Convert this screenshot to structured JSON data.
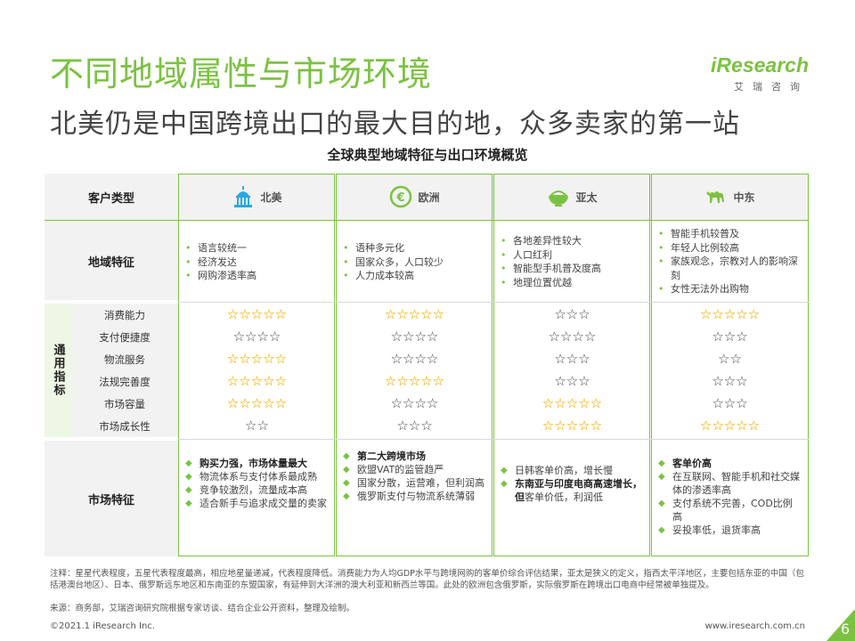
{
  "title": "不同地域属性与市场环境",
  "subtitle": "北美仍是中国跨境出口的最大目的地，众多卖家的第一站",
  "logo": {
    "word": "iResearch",
    "cn": "艾瑞咨询"
  },
  "table_title": "全球典型地域特征与出口环境概览",
  "colors": {
    "accent": "#7cc242",
    "star_gold": "#f2b51c",
    "star_hollow": "#444444"
  },
  "table": {
    "header_label": "客户类型",
    "regions": [
      {
        "name": "北美",
        "icon": "capitol-building-icon"
      },
      {
        "name": "欧洲",
        "icon": "euro-coin-icon"
      },
      {
        "name": "亚太",
        "icon": "rice-bowl-icon"
      },
      {
        "name": "中东",
        "icon": "camel-icon"
      }
    ],
    "region_features_label": "地域特征",
    "region_features": [
      [
        "语言较统一",
        "经济发达",
        "网购渗透率高"
      ],
      [
        "语种多元化",
        "国家众多，人口较少",
        "人力成本较高"
      ],
      [
        "各地差异性较大",
        "人口红利",
        "智能型手机普及度高",
        "地理位置优越"
      ],
      [
        "智能手机较普及",
        "年轻人比例较高",
        "家族观念，宗教对人的影响深刻",
        "女性无法外出购物"
      ]
    ],
    "general_label": "通用指标",
    "metrics": [
      {
        "label": "消费能力",
        "ratings": [
          {
            "count": 5,
            "gold": true
          },
          {
            "count": 5,
            "gold": true
          },
          {
            "count": 3,
            "gold": false
          },
          {
            "count": 5,
            "gold": true
          }
        ]
      },
      {
        "label": "支付便捷度",
        "ratings": [
          {
            "count": 4,
            "gold": false
          },
          {
            "count": 4,
            "gold": false
          },
          {
            "count": 4,
            "gold": false
          },
          {
            "count": 3,
            "gold": false
          }
        ]
      },
      {
        "label": "物流服务",
        "ratings": [
          {
            "count": 5,
            "gold": true
          },
          {
            "count": 4,
            "gold": false
          },
          {
            "count": 3,
            "gold": false
          },
          {
            "count": 2,
            "gold": false
          }
        ]
      },
      {
        "label": "法规完善度",
        "ratings": [
          {
            "count": 5,
            "gold": true
          },
          {
            "count": 5,
            "gold": true
          },
          {
            "count": 3,
            "gold": false
          },
          {
            "count": 3,
            "gold": false
          }
        ]
      },
      {
        "label": "市场容量",
        "ratings": [
          {
            "count": 5,
            "gold": true
          },
          {
            "count": 4,
            "gold": false
          },
          {
            "count": 5,
            "gold": true
          },
          {
            "count": 3,
            "gold": false
          }
        ]
      },
      {
        "label": "市场成长性",
        "ratings": [
          {
            "count": 2,
            "gold": false
          },
          {
            "count": 3,
            "gold": false
          },
          {
            "count": 5,
            "gold": true
          },
          {
            "count": 5,
            "gold": true
          }
        ]
      }
    ],
    "market_features_label": "市场特征",
    "market_features": [
      [
        {
          "bold": "购买力强，市场体量最大",
          "text": ""
        },
        {
          "bold": "",
          "text": "物流体系与支付体系最成熟"
        },
        {
          "bold": "",
          "text": "竞争较激烈，流量成本高"
        },
        {
          "bold": "",
          "text": "适合新手与追求成交量的卖家"
        }
      ],
      [
        {
          "bold": "第二大跨境市场",
          "text": ""
        },
        {
          "bold": "",
          "text": "欧盟VAT的监管趋严"
        },
        {
          "bold": "",
          "text": "国家分散，运营难，但利润高"
        },
        {
          "bold": "",
          "text": "俄罗斯支付与物流系统薄弱"
        }
      ],
      [
        {
          "bold": "",
          "text": "日韩客单价高，增长慢"
        },
        {
          "bold": "东南亚与印度电商高速增长，但",
          "text": "客单价低，利润低"
        }
      ],
      [
        {
          "bold": "客单价高",
          "text": ""
        },
        {
          "bold": "",
          "text": "在互联网、智能手机和社交媒体的渗透率高"
        },
        {
          "bold": "",
          "text": "支付系统不完善，COD比例高"
        },
        {
          "bold": "",
          "text": "妥投率低，退货率高"
        }
      ]
    ]
  },
  "notes": {
    "note": "注释：星星代表程度，五星代表程度最高，相应地星量递减，代表程度降低。消费能力为人均GDP水平与跨境网购的客单价综合评估结果，亚太是狭义的定义，指西太平洋地区，主要包括东亚的中国（包括港澳台地区）、日本、俄罗斯远东地区和东南亚的东盟国家，有延伸到大洋洲的澳大利亚和新西兰等国。此处的欧洲包含俄罗斯，实际俄罗斯在跨境出口电商中经常被单独提及。",
    "source": "来源：商务部，艾瑞咨询研究院根据专家访谈、结合企业公开资料，整理及绘制。"
  },
  "footer": {
    "copyright": "©2021.1 iResearch Inc.",
    "url": "www.iresearch.com.cn",
    "page": "6"
  }
}
